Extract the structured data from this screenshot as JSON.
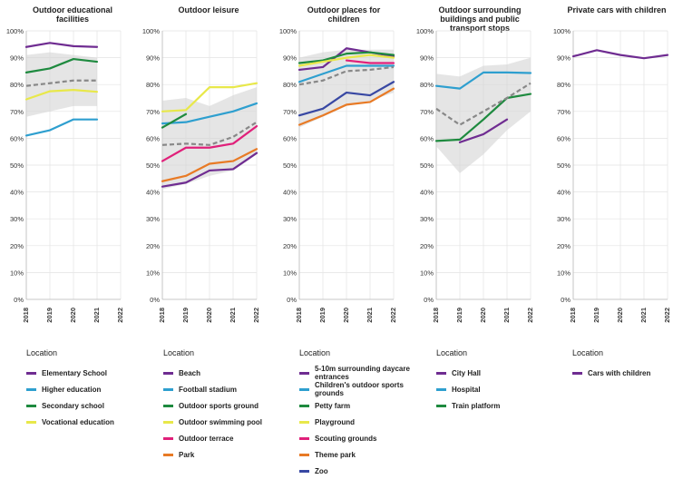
{
  "chart_data": [
    {
      "type": "line",
      "title": "Outdoor educational facilities",
      "x": [
        "2018",
        "2019",
        "2020",
        "2021",
        "2022"
      ],
      "ylim": [
        0,
        100
      ],
      "yticks": [
        "0%",
        "10%",
        "20%",
        "30%",
        "40%",
        "50%",
        "60%",
        "70%",
        "80%",
        "90%",
        "100%"
      ],
      "band": {
        "x": [
          "2018",
          "2019",
          "2020",
          "2021"
        ],
        "upper": [
          91,
          92,
          91,
          90
        ],
        "lower": [
          68,
          70,
          72,
          72
        ]
      },
      "reference": {
        "x": [
          "2018",
          "2019",
          "2020",
          "2021"
        ],
        "values": [
          79.5,
          80.5,
          81.5,
          81.5
        ]
      },
      "legend_title": "Location",
      "series": [
        {
          "name": "Elementary School",
          "color": "#6f2c91",
          "x": [
            "2018",
            "2019",
            "2020",
            "2021"
          ],
          "values": [
            94,
            95.5,
            94.3,
            94
          ]
        },
        {
          "name": "Higher education",
          "color": "#2e9fcf",
          "x": [
            "2018",
            "2019",
            "2020",
            "2021"
          ],
          "values": [
            61,
            63,
            67,
            67
          ]
        },
        {
          "name": "Secondary school",
          "color": "#1e8a3f",
          "x": [
            "2018",
            "2019",
            "2020",
            "2021"
          ],
          "values": [
            84.5,
            86,
            89.5,
            88.5
          ]
        },
        {
          "name": "Vocational education",
          "color": "#e8e84a",
          "x": [
            "2018",
            "2019",
            "2020",
            "2021"
          ],
          "values": [
            74.5,
            77.5,
            78,
            77.3
          ]
        }
      ]
    },
    {
      "type": "line",
      "title": "Outdoor leisure",
      "x": [
        "2018",
        "2019",
        "2020",
        "2021",
        "2022"
      ],
      "ylim": [
        0,
        100
      ],
      "yticks": [
        "0%",
        "10%",
        "20%",
        "30%",
        "40%",
        "50%",
        "60%",
        "70%",
        "80%",
        "90%",
        "100%"
      ],
      "band": {
        "x": [
          "2018",
          "2019",
          "2020",
          "2021",
          "2022"
        ],
        "upper": [
          74,
          75,
          72,
          76,
          79
        ],
        "lower": [
          41,
          43,
          46,
          48,
          54
        ]
      },
      "reference": {
        "x": [
          "2018",
          "2019",
          "2020",
          "2021",
          "2022"
        ],
        "values": [
          57.5,
          58,
          57.5,
          60.5,
          66
        ]
      },
      "legend_title": "Location",
      "series": [
        {
          "name": "Beach",
          "color": "#6f2c91",
          "x": [
            "2018",
            "2019",
            "2020",
            "2021",
            "2022"
          ],
          "values": [
            42,
            43.5,
            48,
            48.5,
            54.5
          ]
        },
        {
          "name": "Football stadium",
          "color": "#2e9fcf",
          "x": [
            "2018",
            "2019",
            "2020",
            "2021",
            "2022"
          ],
          "values": [
            65.5,
            66,
            68,
            70,
            73
          ]
        },
        {
          "name": "Outdoor sports ground",
          "color": "#1e8a3f",
          "x": [
            "2018",
            "2019"
          ],
          "values": [
            64,
            69
          ]
        },
        {
          "name": "Outdoor swimming pool",
          "color": "#e8e84a",
          "x": [
            "2018",
            "2019",
            "2020",
            "2021",
            "2022"
          ],
          "values": [
            70,
            70.5,
            79,
            79,
            80.5
          ]
        },
        {
          "name": "Outdoor terrace",
          "color": "#e0207a",
          "x": [
            "2018",
            "2019",
            "2020",
            "2021",
            "2022"
          ],
          "values": [
            51.5,
            56.5,
            56.5,
            58,
            64.5
          ]
        },
        {
          "name": "Park",
          "color": "#e87a25",
          "x": [
            "2018",
            "2019",
            "2020",
            "2021",
            "2022"
          ],
          "values": [
            44,
            46,
            50.5,
            51.5,
            56
          ]
        }
      ]
    },
    {
      "type": "line",
      "title": "Outdoor places for children",
      "x": [
        "2018",
        "2019",
        "2020",
        "2021",
        "2022"
      ],
      "ylim": [
        0,
        100
      ],
      "yticks": [
        "0%",
        "10%",
        "20%",
        "30%",
        "40%",
        "50%",
        "60%",
        "70%",
        "80%",
        "90%",
        "100%"
      ],
      "band": {
        "x": [
          "2018",
          "2019",
          "2020",
          "2021",
          "2022"
        ],
        "upper": [
          90,
          92,
          93,
          93,
          93
        ],
        "lower": [
          64,
          68,
          72,
          74,
          77
        ]
      },
      "reference": {
        "x": [
          "2018",
          "2019",
          "2020",
          "2021",
          "2022"
        ],
        "values": [
          80,
          81.5,
          85,
          85.5,
          86.5
        ]
      },
      "legend_title": "Location",
      "series": [
        {
          "name": "5-10m surrounding daycare entrances",
          "color": "#6f2c91",
          "x": [
            "2018",
            "2019",
            "2020",
            "2021",
            "2022"
          ],
          "values": [
            85.5,
            86.5,
            93.5,
            92,
            90.5
          ]
        },
        {
          "name": "Children's outdoor sports grounds",
          "color": "#2e9fcf",
          "x": [
            "2018",
            "2019",
            "2020",
            "2021",
            "2022"
          ],
          "values": [
            81,
            84,
            87,
            87,
            87
          ]
        },
        {
          "name": "Petty farm",
          "color": "#1e8a3f",
          "x": [
            "2018",
            "2019",
            "2020",
            "2021",
            "2022"
          ],
          "values": [
            88,
            89,
            91.5,
            92,
            91
          ]
        },
        {
          "name": "Playground",
          "color": "#e8e84a",
          "x": [
            "2018",
            "2019",
            "2020",
            "2021",
            "2022"
          ],
          "values": [
            87,
            88.5,
            90,
            91,
            90
          ]
        },
        {
          "name": "Scouting grounds",
          "color": "#e0207a",
          "x": [
            "2020",
            "2021",
            "2022"
          ],
          "values": [
            89,
            88,
            88
          ]
        },
        {
          "name": "Theme park",
          "color": "#e87a25",
          "x": [
            "2018",
            "2019",
            "2020",
            "2021",
            "2022"
          ],
          "values": [
            65,
            68.5,
            72.5,
            73.5,
            78.5
          ]
        },
        {
          "name": "Zoo",
          "color": "#3848a3",
          "x": [
            "2018",
            "2019",
            "2020",
            "2021",
            "2022"
          ],
          "values": [
            68.5,
            71,
            77,
            76,
            81
          ]
        }
      ]
    },
    {
      "type": "line",
      "title": "Outdoor surrounding buildings and public transport stops",
      "x": [
        "2018",
        "2019",
        "2020",
        "2021",
        "2022"
      ],
      "ylim": [
        0,
        100
      ],
      "yticks": [
        "0%",
        "10%",
        "20%",
        "30%",
        "40%",
        "50%",
        "60%",
        "70%",
        "80%",
        "90%",
        "100%"
      ],
      "band": {
        "x": [
          "2018",
          "2019",
          "2020",
          "2021",
          "2022"
        ],
        "upper": [
          84,
          83,
          87,
          87.5,
          90
        ],
        "lower": [
          57,
          47,
          54,
          63,
          70
        ]
      },
      "reference": {
        "x": [
          "2018",
          "2019",
          "2020",
          "2021",
          "2022"
        ],
        "values": [
          71,
          65,
          70,
          75,
          80.5
        ]
      },
      "legend_title": "Location",
      "series": [
        {
          "name": "City Hall",
          "color": "#6f2c91",
          "x": [
            "2019",
            "2020",
            "2021"
          ],
          "values": [
            58.5,
            61.5,
            67
          ]
        },
        {
          "name": "Hospital",
          "color": "#2e9fcf",
          "x": [
            "2018",
            "2019",
            "2020",
            "2021",
            "2022"
          ],
          "values": [
            79.5,
            78.5,
            84.5,
            84.5,
            84.3
          ]
        },
        {
          "name": "Train platform",
          "color": "#1e8a3f",
          "x": [
            "2018",
            "2019",
            "2020",
            "2021",
            "2022"
          ],
          "values": [
            59,
            59.5,
            67,
            75,
            76.5
          ]
        }
      ]
    },
    {
      "type": "line",
      "title": "Private cars with children",
      "x": [
        "2018",
        "2019",
        "2020",
        "2021",
        "2022"
      ],
      "ylim": [
        0,
        100
      ],
      "yticks": [
        "0%",
        "10%",
        "20%",
        "30%",
        "40%",
        "50%",
        "60%",
        "70%",
        "80%",
        "90%",
        "100%"
      ],
      "band": null,
      "reference": null,
      "legend_title": "Location",
      "series": [
        {
          "name": "Cars with children",
          "color": "#6f2c91",
          "x": [
            "2018",
            "2019",
            "2020",
            "2021",
            "2022"
          ],
          "values": [
            90.5,
            92.8,
            91,
            89.8,
            91
          ]
        }
      ]
    }
  ]
}
